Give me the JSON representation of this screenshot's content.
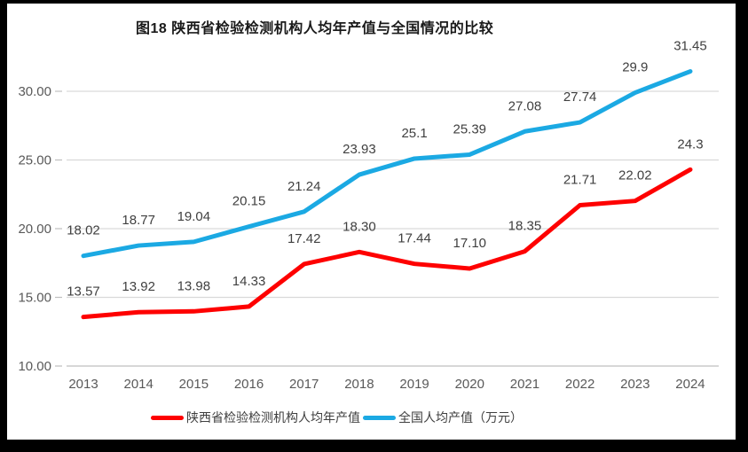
{
  "title": "图18 陕西省检验检测机构人均年产值与全国情况的比较",
  "colors": {
    "background": "#ffffff",
    "frame": "#000000",
    "grid": "#d9d9d9",
    "axis": "#bfbfbf",
    "axis_text": "#595959",
    "label_text": "#404040",
    "title_text": "#1a1a1a",
    "series_shaanxi": "#fe0000",
    "series_national": "#1ba9e3"
  },
  "chart_data": {
    "type": "line",
    "title": "图18 陕西省检验检测机构人均年产值与全国情况的比较",
    "categories": [
      "2013",
      "2014",
      "2015",
      "2016",
      "2017",
      "2018",
      "2019",
      "2020",
      "2021",
      "2022",
      "2023",
      "2024"
    ],
    "series": [
      {
        "name": "陕西省检验检测机构人均年产值",
        "color": "#fe0000",
        "values": [
          13.57,
          13.92,
          13.98,
          14.33,
          17.42,
          18.3,
          17.44,
          17.1,
          18.35,
          21.71,
          22.02,
          24.3
        ],
        "labels": [
          "13.57",
          "13.92",
          "13.98",
          "14.33",
          "17.42",
          "18.30",
          "17.44",
          "17.10",
          "18.35",
          "21.71",
          "22.02",
          "24.3"
        ]
      },
      {
        "name": "全国人均产值（万元）",
        "color": "#1ba9e3",
        "values": [
          18.02,
          18.77,
          19.04,
          20.15,
          21.24,
          23.93,
          25.1,
          25.39,
          27.08,
          27.74,
          29.9,
          31.45
        ],
        "labels": [
          "18.02",
          "18.77",
          "19.04",
          "20.15",
          "21.24",
          "23.93",
          "25.1",
          "25.39",
          "27.08",
          "27.74",
          "29.9",
          "31.45"
        ]
      }
    ],
    "xlabel": "",
    "ylabel": "",
    "ylim": [
      10,
      32.5
    ],
    "yticks": [
      10,
      15,
      20,
      25,
      30
    ],
    "ytick_labels": [
      "10.00",
      "15.00",
      "20.00",
      "25.00",
      "30.00"
    ],
    "grid": true,
    "legend_position": "bottom"
  }
}
